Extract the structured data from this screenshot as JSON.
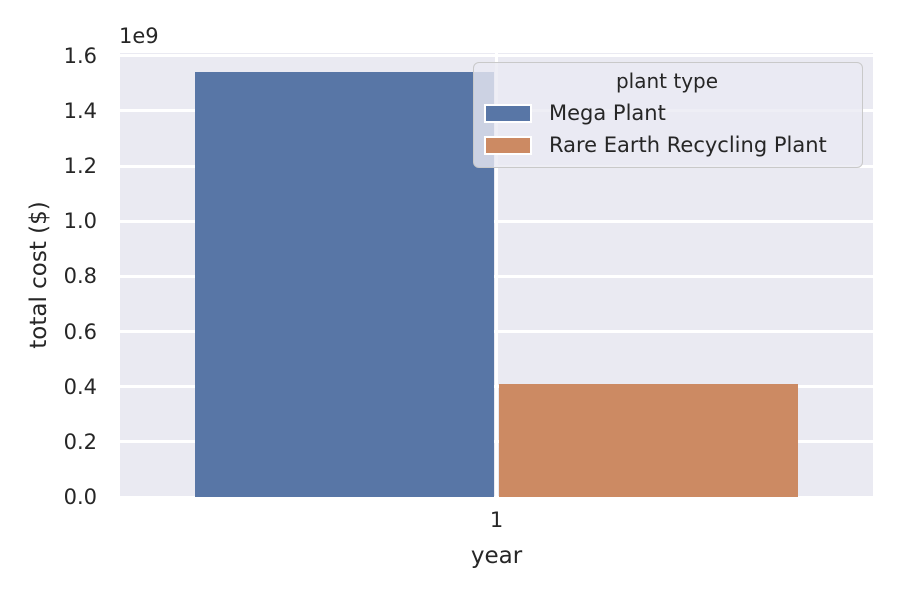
{
  "chart_data": {
    "type": "bar",
    "title": "",
    "xlabel": "year",
    "ylabel": "total cost ($)",
    "y_offset_label": "1e9",
    "categories": [
      "1"
    ],
    "series": [
      {
        "name": "Mega Plant",
        "color": "#5876a6",
        "values": [
          1540000000
        ]
      },
      {
        "name": "Rare Earth Recycling Plant",
        "color": "#cc8a63",
        "values": [
          410000000
        ]
      }
    ],
    "legend": {
      "title": "plant type",
      "position": "upper right"
    },
    "ylim": [
      0,
      1610000000
    ],
    "yticks": {
      "values": [
        0,
        200000000,
        400000000,
        600000000,
        800000000,
        1000000000,
        1200000000,
        1400000000,
        1600000000
      ],
      "labels": [
        "0.0",
        "0.2",
        "0.4",
        "0.6",
        "0.8",
        "1.0",
        "1.2",
        "1.4",
        "1.6"
      ]
    },
    "grid": true,
    "style": {
      "plot_background": "#eaeaf2",
      "gridline_color": "#ffffff",
      "text_color": "#262626"
    }
  }
}
